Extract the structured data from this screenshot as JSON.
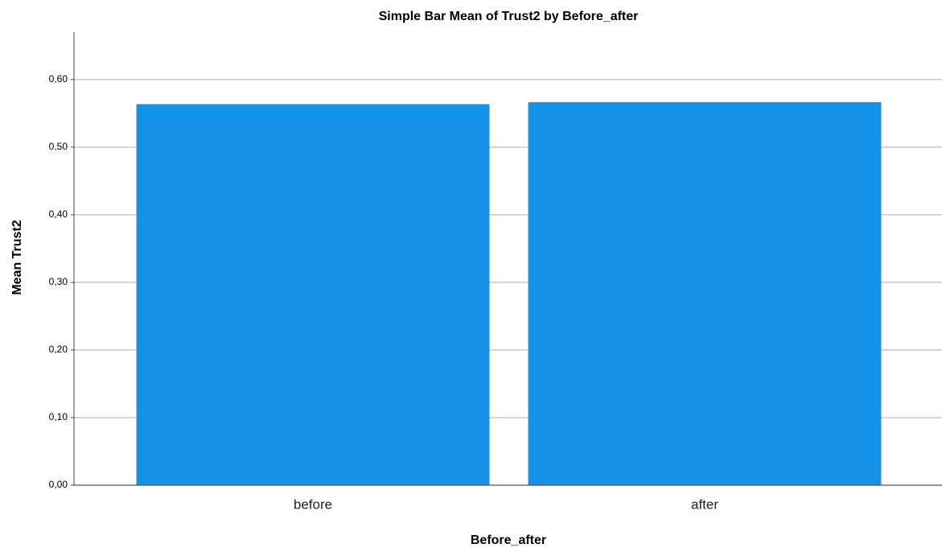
{
  "chart_data": {
    "type": "bar",
    "title": "Simple Bar Mean of Trust2 by Before_after",
    "x_label": "Before_after",
    "y_label": "Mean Trust2",
    "categories": [
      "before",
      "after"
    ],
    "values": [
      0.563,
      0.566
    ],
    "color": "#1592e6",
    "ylim": [
      0,
      0.67
    ],
    "yticks": [
      {
        "value": 0,
        "label": "0,00"
      },
      {
        "value": 0.1,
        "label": "0,10"
      },
      {
        "value": 0.2,
        "label": "0,20"
      },
      {
        "value": 0.3,
        "label": "0,30"
      },
      {
        "value": 0.4,
        "label": "0,40"
      },
      {
        "value": 0.5,
        "label": "0,50"
      },
      {
        "value": 0.6,
        "label": "0,60"
      }
    ],
    "grid": true
  }
}
